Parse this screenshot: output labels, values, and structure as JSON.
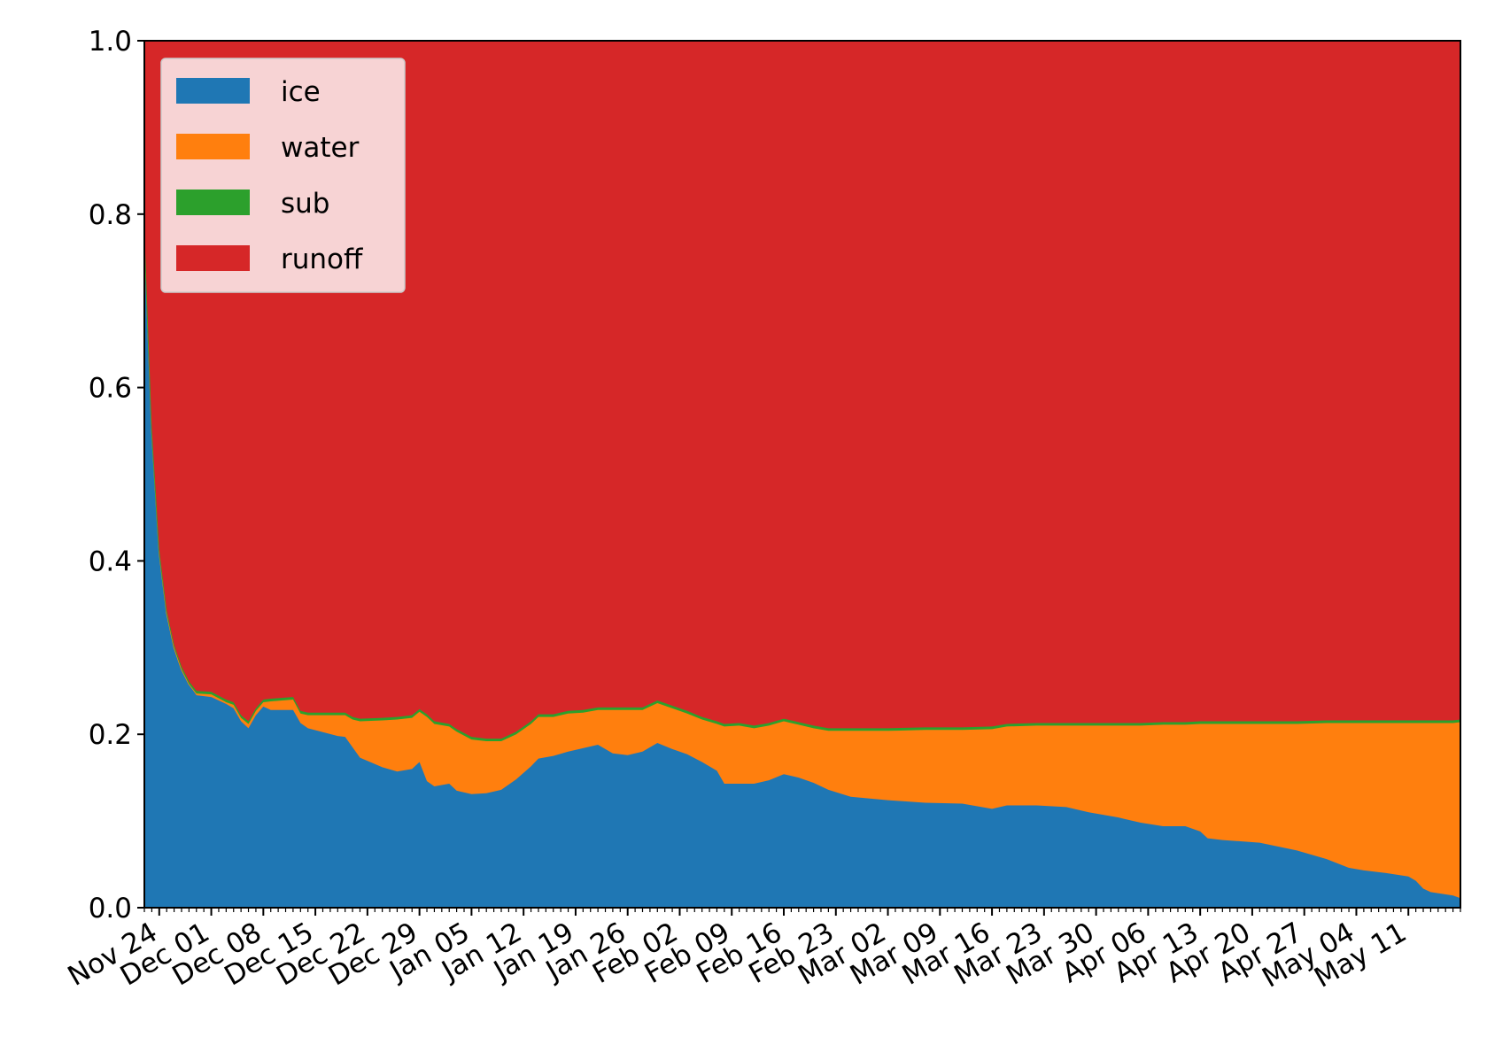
{
  "chart_data": {
    "type": "stackedarea",
    "x": [
      0,
      1,
      2,
      3,
      4,
      5,
      6,
      7,
      9,
      11,
      12,
      13,
      14,
      15,
      16,
      17,
      20,
      21,
      22,
      26,
      27,
      28,
      29,
      32,
      34,
      36,
      37,
      38,
      39,
      41,
      42,
      44,
      46,
      48,
      50,
      52,
      53,
      55,
      57,
      59,
      61,
      63,
      65,
      67,
      69,
      71,
      73,
      75,
      77,
      78,
      80,
      82,
      84,
      86,
      88,
      90,
      92,
      95,
      100,
      105,
      110,
      114,
      116,
      120,
      124,
      127,
      131,
      134,
      137,
      140,
      142,
      143,
      145,
      150,
      155,
      159,
      162,
      164,
      167,
      170,
      171,
      172,
      173,
      176,
      177
    ],
    "series": [
      {
        "name": "ice",
        "color": "#1f77b4",
        "values": [
          0.78,
          0.55,
          0.41,
          0.34,
          0.3,
          0.275,
          0.258,
          0.245,
          0.243,
          0.235,
          0.23,
          0.215,
          0.207,
          0.222,
          0.232,
          0.228,
          0.228,
          0.213,
          0.207,
          0.198,
          0.197,
          0.185,
          0.173,
          0.162,
          0.157,
          0.16,
          0.168,
          0.146,
          0.14,
          0.143,
          0.135,
          0.131,
          0.132,
          0.136,
          0.148,
          0.163,
          0.172,
          0.175,
          0.18,
          0.184,
          0.188,
          0.178,
          0.176,
          0.18,
          0.19,
          0.183,
          0.177,
          0.168,
          0.158,
          0.143,
          0.143,
          0.143,
          0.147,
          0.154,
          0.15,
          0.144,
          0.136,
          0.128,
          0.124,
          0.121,
          0.12,
          0.114,
          0.118,
          0.118,
          0.116,
          0.11,
          0.104,
          0.098,
          0.094,
          0.094,
          0.088,
          0.08,
          0.078,
          0.075,
          0.066,
          0.056,
          0.046,
          0.043,
          0.04,
          0.036,
          0.031,
          0.022,
          0.018,
          0.014,
          0.011
        ]
      },
      {
        "name": "water",
        "color": "#ff7f0e",
        "values": [
          0,
          0,
          0,
          0,
          0,
          0,
          0,
          0.002,
          0.003,
          0.002,
          0.004,
          0.004,
          0.005,
          0.005,
          0.005,
          0.01,
          0.012,
          0.011,
          0.015,
          0.024,
          0.025,
          0.032,
          0.042,
          0.054,
          0.06,
          0.059,
          0.058,
          0.074,
          0.072,
          0.066,
          0.068,
          0.063,
          0.06,
          0.056,
          0.052,
          0.049,
          0.048,
          0.045,
          0.044,
          0.041,
          0.04,
          0.05,
          0.052,
          0.048,
          0.046,
          0.047,
          0.047,
          0.049,
          0.054,
          0.066,
          0.067,
          0.064,
          0.063,
          0.061,
          0.061,
          0.063,
          0.068,
          0.076,
          0.08,
          0.084,
          0.085,
          0.092,
          0.091,
          0.092,
          0.094,
          0.1,
          0.106,
          0.112,
          0.117,
          0.117,
          0.124,
          0.132,
          0.134,
          0.137,
          0.146,
          0.157,
          0.167,
          0.17,
          0.173,
          0.177,
          0.182,
          0.191,
          0.195,
          0.199,
          0.203
        ]
      },
      {
        "name": "sub",
        "color": "#2ca02c",
        "values": [
          0.003,
          0.003,
          0.003,
          0.003,
          0.003,
          0.003,
          0.003,
          0.003,
          0.003,
          0.003,
          0.003,
          0.003,
          0.003,
          0.003,
          0.003,
          0.003,
          0.003,
          0.003,
          0.003,
          0.003,
          0.003,
          0.003,
          0.003,
          0.003,
          0.003,
          0.003,
          0.003,
          0.003,
          0.003,
          0.003,
          0.003,
          0.003,
          0.003,
          0.003,
          0.003,
          0.003,
          0.003,
          0.003,
          0.003,
          0.003,
          0.003,
          0.003,
          0.003,
          0.003,
          0.003,
          0.003,
          0.003,
          0.003,
          0.003,
          0.003,
          0.003,
          0.003,
          0.003,
          0.003,
          0.003,
          0.003,
          0.003,
          0.003,
          0.003,
          0.003,
          0.003,
          0.003,
          0.003,
          0.003,
          0.003,
          0.003,
          0.003,
          0.003,
          0.003,
          0.003,
          0.003,
          0.003,
          0.003,
          0.003,
          0.003,
          0.003,
          0.003,
          0.003,
          0.003,
          0.003,
          0.003,
          0.003,
          0.003,
          0.003,
          0.003
        ]
      },
      {
        "name": "runoff",
        "color": "#d62728",
        "values": [
          0.217,
          0.447,
          0.587,
          0.657,
          0.697,
          0.722,
          0.739,
          0.75,
          0.751,
          0.76,
          0.763,
          0.778,
          0.785,
          0.77,
          0.76,
          0.759,
          0.757,
          0.773,
          0.775,
          0.775,
          0.775,
          0.78,
          0.782,
          0.781,
          0.78,
          0.778,
          0.771,
          0.777,
          0.785,
          0.788,
          0.794,
          0.803,
          0.805,
          0.805,
          0.797,
          0.785,
          0.777,
          0.777,
          0.773,
          0.772,
          0.769,
          0.769,
          0.769,
          0.769,
          0.761,
          0.767,
          0.773,
          0.78,
          0.785,
          0.788,
          0.787,
          0.79,
          0.787,
          0.782,
          0.786,
          0.79,
          0.793,
          0.793,
          0.793,
          0.792,
          0.792,
          0.791,
          0.788,
          0.787,
          0.787,
          0.787,
          0.787,
          0.787,
          0.786,
          0.786,
          0.785,
          0.785,
          0.785,
          0.785,
          0.785,
          0.784,
          0.784,
          0.784,
          0.784,
          0.784,
          0.784,
          0.784,
          0.784,
          0.784,
          0.783
        ]
      }
    ],
    "xlim": [
      0,
      177
    ],
    "xticks": [
      {
        "value": 2,
        "label": "Nov 24"
      },
      {
        "value": 9,
        "label": "Dec 01"
      },
      {
        "value": 16,
        "label": "Dec 08"
      },
      {
        "value": 23,
        "label": "Dec 15"
      },
      {
        "value": 30,
        "label": "Dec 22"
      },
      {
        "value": 37,
        "label": "Dec 29"
      },
      {
        "value": 44,
        "label": "Jan 05"
      },
      {
        "value": 51,
        "label": "Jan 12"
      },
      {
        "value": 58,
        "label": "Jan 19"
      },
      {
        "value": 65,
        "label": "Jan 26"
      },
      {
        "value": 72,
        "label": "Feb 02"
      },
      {
        "value": 79,
        "label": "Feb 09"
      },
      {
        "value": 86,
        "label": "Feb 16"
      },
      {
        "value": 93,
        "label": "Feb 23"
      },
      {
        "value": 100,
        "label": "Mar 02"
      },
      {
        "value": 107,
        "label": "Mar 09"
      },
      {
        "value": 114,
        "label": "Mar 16"
      },
      {
        "value": 121,
        "label": "Mar 23"
      },
      {
        "value": 128,
        "label": "Mar 30"
      },
      {
        "value": 135,
        "label": "Apr 06"
      },
      {
        "value": 142,
        "label": "Apr 13"
      },
      {
        "value": 149,
        "label": "Apr 20"
      },
      {
        "value": 156,
        "label": "Apr 27"
      },
      {
        "value": 163,
        "label": "May 04"
      },
      {
        "value": 170,
        "label": "May 11"
      }
    ],
    "xminorticks": [
      0,
      1,
      2,
      3,
      4,
      5,
      6,
      7,
      8,
      9,
      10,
      11,
      12,
      13,
      14,
      15,
      16,
      17,
      18,
      19,
      20,
      21,
      22,
      23,
      24,
      25,
      26,
      27,
      28,
      29,
      30,
      31,
      32,
      33,
      34,
      35,
      36,
      37,
      38,
      39,
      40,
      41,
      42,
      43,
      44,
      45,
      46,
      47,
      48,
      49,
      50,
      51,
      52,
      53,
      54,
      55,
      56,
      57,
      58,
      59,
      60,
      61,
      62,
      63,
      64,
      65,
      66,
      67,
      68,
      69,
      70,
      71,
      72,
      73,
      74,
      75,
      76,
      77,
      78,
      79,
      80,
      81,
      82,
      83,
      84,
      85,
      86,
      87,
      88,
      89,
      90,
      91,
      92,
      93,
      94,
      95,
      96,
      97,
      98,
      99,
      100,
      101,
      102,
      103,
      104,
      105,
      106,
      107,
      108,
      109,
      110,
      111,
      112,
      113,
      114,
      115,
      116,
      117,
      118,
      119,
      120,
      121,
      122,
      123,
      124,
      125,
      126,
      127,
      128,
      129,
      130,
      131,
      132,
      133,
      134,
      135,
      136,
      137,
      138,
      139,
      140,
      141,
      142,
      143,
      144,
      145,
      146,
      147,
      148,
      149,
      150,
      151,
      152,
      153,
      154,
      155,
      156,
      157,
      158,
      159,
      160,
      161,
      162,
      163,
      164,
      165,
      166,
      167,
      168,
      169,
      170,
      171,
      172,
      173,
      174,
      175,
      176,
      177
    ],
    "ylim": [
      0.0,
      1.0
    ],
    "yticks": [
      {
        "value": 0,
        "label": "0.0"
      },
      {
        "value": 0.2,
        "label": "0.2"
      },
      {
        "value": 0.4,
        "label": "0.4"
      },
      {
        "value": 0.6,
        "label": "0.6"
      },
      {
        "value": 0.8,
        "label": "0.8"
      },
      {
        "value": 1,
        "label": "1.0"
      }
    ],
    "legend": "upper left"
  }
}
